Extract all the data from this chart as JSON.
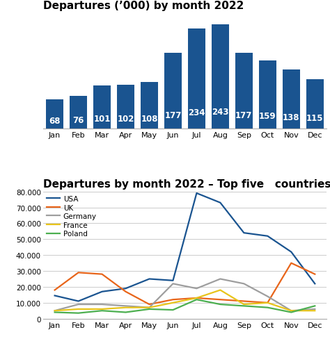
{
  "bar_title": "Departures (’000) by month 2022",
  "line_title": "Departures by month 2022 – Top five   countries",
  "months": [
    "Jan",
    "Feb",
    "Mar",
    "Apr",
    "May",
    "Jun",
    "Jul",
    "Aug",
    "Sep",
    "Oct",
    "Nov",
    "Dec"
  ],
  "bar_values": [
    68,
    76,
    101,
    102,
    108,
    177,
    234,
    243,
    177,
    159,
    138,
    115
  ],
  "bar_color": "#1A5490",
  "line_data": {
    "USA": [
      14500,
      11000,
      17000,
      19000,
      25000,
      24000,
      79000,
      73000,
      54000,
      52000,
      42000,
      22000
    ],
    "UK": [
      18000,
      29000,
      28000,
      17000,
      9000,
      12000,
      13000,
      12000,
      11000,
      10000,
      35000,
      28000
    ],
    "Germany": [
      5000,
      9000,
      9000,
      8000,
      7000,
      22000,
      19000,
      25000,
      22000,
      14000,
      5000,
      6000
    ],
    "France": [
      5000,
      6000,
      6000,
      7000,
      7000,
      10000,
      13000,
      18000,
      9000,
      10000,
      5000,
      5000
    ],
    "Poland": [
      4000,
      3500,
      5000,
      4000,
      6000,
      5500,
      12000,
      9000,
      8000,
      7000,
      4000,
      8000
    ]
  },
  "line_colors": {
    "USA": "#1A5490",
    "UK": "#E8651A",
    "Germany": "#9E9E9E",
    "France": "#E8C41A",
    "Poland": "#4CAF50"
  },
  "line_ylim": [
    0,
    80000
  ],
  "line_yticks": [
    0,
    10000,
    20000,
    30000,
    40000,
    50000,
    60000,
    70000,
    80000
  ],
  "background_color": "#ffffff",
  "bar_label_color": "#ffffff",
  "bar_label_fontsize": 8.5,
  "title_fontsize": 11
}
